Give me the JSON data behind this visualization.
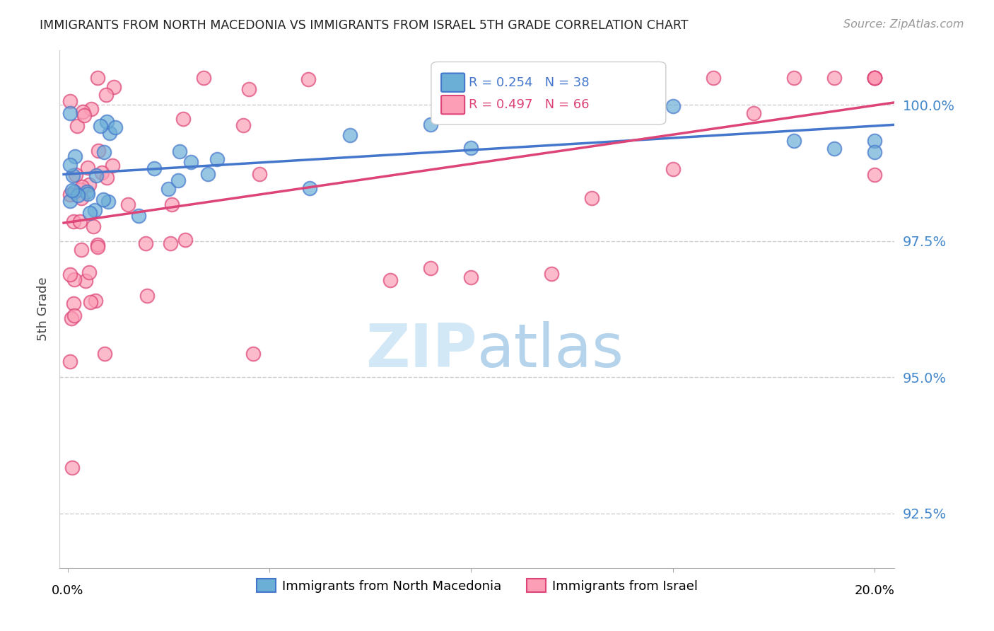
{
  "title": "IMMIGRANTS FROM NORTH MACEDONIA VS IMMIGRANTS FROM ISRAEL 5TH GRADE CORRELATION CHART",
  "source": "Source: ZipAtlas.com",
  "ylabel": "5th Grade",
  "y_ticks": [
    92.5,
    95.0,
    97.5,
    100.0
  ],
  "y_min": 91.5,
  "y_max": 101.0,
  "x_min": -0.002,
  "x_max": 0.205,
  "legend_blue_label": "Immigrants from North Macedonia",
  "legend_pink_label": "Immigrants from Israel",
  "r_blue": "R = 0.254",
  "n_blue": "N = 38",
  "r_pink": "R = 0.497",
  "n_pink": "N = 66",
  "color_blue": "#6baed6",
  "color_pink": "#fc9eb6",
  "trendline_blue": "#4477cc",
  "trendline_pink": "#dd4477",
  "watermark_zip": "ZIP",
  "watermark_atlas": "atlas",
  "background_color": "#ffffff",
  "grid_color": "#cccccc"
}
